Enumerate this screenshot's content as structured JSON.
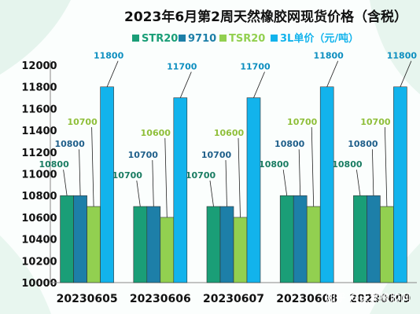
{
  "chart_data": {
    "type": "bar",
    "title": "2023年6月第2周天然橡胶网现货价格（含税）",
    "categories": [
      "20230605",
      "20230606",
      "20230607",
      "20230608",
      "20230609"
    ],
    "series": [
      {
        "name": "STR20",
        "values": [
          10800,
          10700,
          10700,
          10800,
          10800
        ],
        "color": "#1a9e77"
      },
      {
        "name": "9710",
        "values": [
          10800,
          10700,
          10700,
          10800,
          10800
        ],
        "color": "#1d7fa8"
      },
      {
        "name": "TSR20",
        "values": [
          10700,
          10600,
          10600,
          10700,
          10700
        ],
        "color": "#92d050"
      },
      {
        "name": "3L单价（元/吨）",
        "values": [
          11800,
          11700,
          11700,
          11800,
          11800
        ],
        "color": "#12b3ec"
      }
    ],
    "data_label_colors": [
      "#1a7c62",
      "#1f5f8a",
      "#8fbf3a",
      "#0e8fc0"
    ],
    "ylim": [
      10000,
      12000
    ],
    "yticks": [
      10000,
      10200,
      10400,
      10600,
      10800,
      11000,
      11200,
      11400,
      11600,
      11800,
      12000
    ],
    "grid": false,
    "legend_position": "top",
    "xlabel": "",
    "ylabel": ""
  },
  "watermark": "知乎 @天然橡胶网"
}
